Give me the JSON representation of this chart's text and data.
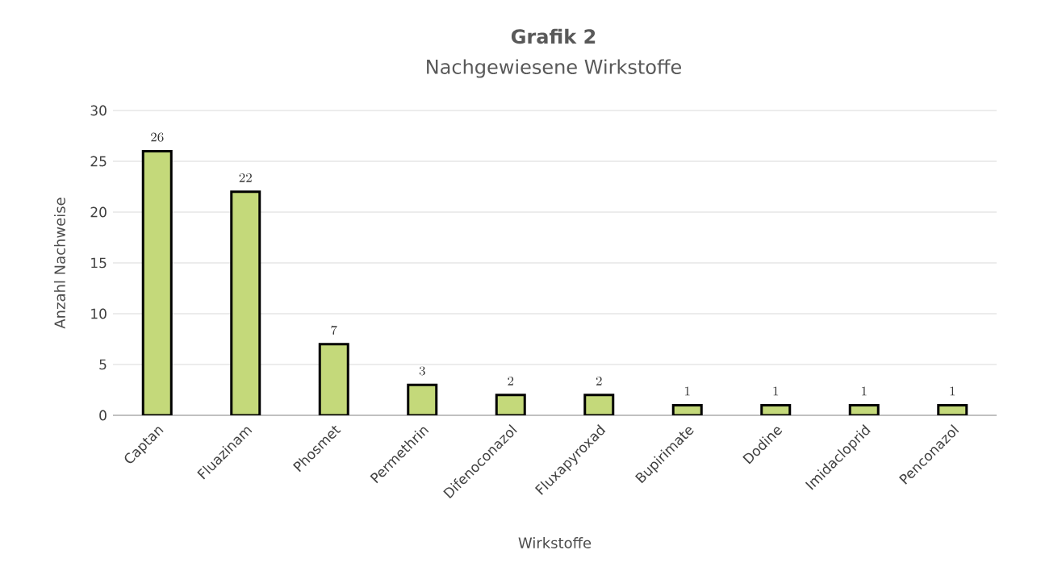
{
  "chart_data": {
    "type": "bar",
    "title": "Grafik 2",
    "subtitle": "Nachgewiesene Wirkstoffe",
    "xlabel": "Wirkstoffe",
    "ylabel": "Anzahl Nachweise",
    "categories": [
      "Captan",
      "Fluazinam",
      "Phosmet",
      "Permethrin",
      "Difenoconazol",
      "Fluxapyroxad",
      "Bupirimate",
      "Dodine",
      "Imidacloprid",
      "Penconazol"
    ],
    "values": [
      26,
      22,
      7,
      3,
      2,
      2,
      1,
      1,
      1,
      1
    ],
    "color": "#c4d97a",
    "ylim": [
      0,
      30
    ],
    "yticks": [
      0,
      5,
      10,
      15,
      20,
      25,
      30
    ],
    "grid": "y",
    "data_labels": true
  }
}
